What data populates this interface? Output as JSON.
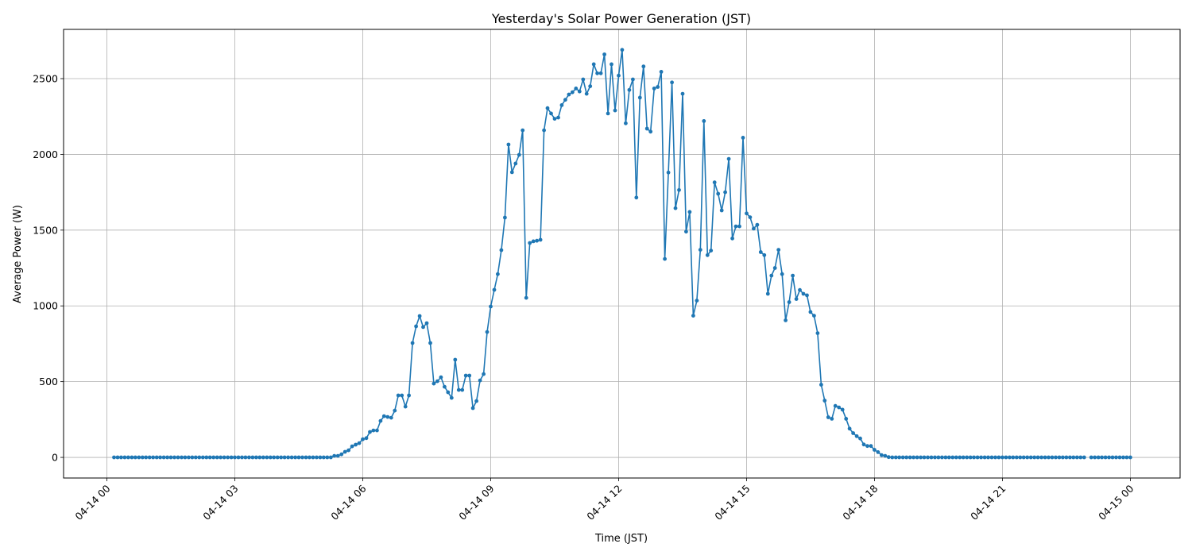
{
  "chart_data": {
    "type": "line",
    "title": "Yesterday's Solar Power Generation (JST)",
    "xlabel": "Time (JST)",
    "ylabel": "Average Power (W)",
    "xlim": [
      "04-13 22:59",
      "04-15 01:10"
    ],
    "ylim": [
      -136,
      2825
    ],
    "grid": true,
    "marker": "dot",
    "color": "#1f77b4",
    "x_ticks": [
      "04-14 00",
      "04-14 03",
      "04-14 06",
      "04-14 09",
      "04-14 12",
      "04-14 15",
      "04-14 18",
      "04-14 21",
      "04-15 00"
    ],
    "y_ticks": [
      0,
      500,
      1000,
      1500,
      2000,
      2500
    ],
    "x": [
      "04-14 00:10",
      "04-14 00:15",
      "04-14 00:20",
      "04-14 00:25",
      "04-14 00:30",
      "04-14 00:35",
      "04-14 00:40",
      "04-14 00:45",
      "04-14 00:50",
      "04-14 00:55",
      "04-14 01:00",
      "04-14 01:05",
      "04-14 01:10",
      "04-14 01:15",
      "04-14 01:20",
      "04-14 01:25",
      "04-14 01:30",
      "04-14 01:35",
      "04-14 01:40",
      "04-14 01:45",
      "04-14 01:50",
      "04-14 01:55",
      "04-14 02:00",
      "04-14 02:05",
      "04-14 02:10",
      "04-14 02:15",
      "04-14 02:20",
      "04-14 02:25",
      "04-14 02:30",
      "04-14 02:35",
      "04-14 02:40",
      "04-14 02:45",
      "04-14 02:50",
      "04-14 02:55",
      "04-14 03:00",
      "04-14 03:05",
      "04-14 03:10",
      "04-14 03:15",
      "04-14 03:20",
      "04-14 03:25",
      "04-14 03:30",
      "04-14 03:35",
      "04-14 03:40",
      "04-14 03:45",
      "04-14 03:50",
      "04-14 03:55",
      "04-14 04:00",
      "04-14 04:05",
      "04-14 04:10",
      "04-14 04:15",
      "04-14 04:20",
      "04-14 04:25",
      "04-14 04:30",
      "04-14 04:35",
      "04-14 04:40",
      "04-14 04:45",
      "04-14 04:50",
      "04-14 04:55",
      "04-14 05:00",
      "04-14 05:05",
      "04-14 05:10",
      "04-14 05:15",
      "04-14 05:20",
      "04-14 05:25",
      "04-14 05:30",
      "04-14 05:35",
      "04-14 05:40",
      "04-14 05:45",
      "04-14 05:50",
      "04-14 05:55",
      "04-14 06:00",
      "04-14 06:05",
      "04-14 06:10",
      "04-14 06:15",
      "04-14 06:20",
      "04-14 06:25",
      "04-14 06:30",
      "04-14 06:35",
      "04-14 06:40",
      "04-14 06:45",
      "04-14 06:50",
      "04-14 06:55",
      "04-14 07:00",
      "04-14 07:05",
      "04-14 07:10",
      "04-14 07:15",
      "04-14 07:20",
      "04-14 07:25",
      "04-14 07:30",
      "04-14 07:35",
      "04-14 07:40",
      "04-14 07:45",
      "04-14 07:50",
      "04-14 07:55",
      "04-14 08:00",
      "04-14 08:05",
      "04-14 08:10",
      "04-14 08:15",
      "04-14 08:20",
      "04-14 08:25",
      "04-14 08:30",
      "04-14 08:35",
      "04-14 08:40",
      "04-14 08:45",
      "04-14 08:50",
      "04-14 08:55",
      "04-14 09:00",
      "04-14 09:05",
      "04-14 09:10",
      "04-14 09:15",
      "04-14 09:20",
      "04-14 09:25",
      "04-14 09:30",
      "04-14 09:35",
      "04-14 09:40",
      "04-14 09:45",
      "04-14 09:50",
      "04-14 09:55",
      "04-14 10:00",
      "04-14 10:05",
      "04-14 10:10",
      "04-14 10:15",
      "04-14 10:20",
      "04-14 10:25",
      "04-14 10:30",
      "04-14 10:35",
      "04-14 10:40",
      "04-14 10:45",
      "04-14 10:50",
      "04-14 10:55",
      "04-14 11:00",
      "04-14 11:05",
      "04-14 11:10",
      "04-14 11:15",
      "04-14 11:20",
      "04-14 11:25",
      "04-14 11:30",
      "04-14 11:35",
      "04-14 11:40",
      "04-14 11:45",
      "04-14 11:50",
      "04-14 11:55",
      "04-14 12:00",
      "04-14 12:05",
      "04-14 12:10",
      "04-14 12:15",
      "04-14 12:20",
      "04-14 12:25",
      "04-14 12:30",
      "04-14 12:35",
      "04-14 12:40",
      "04-14 12:45",
      "04-14 12:50",
      "04-14 12:55",
      "04-14 13:00",
      "04-14 13:05",
      "04-14 13:10",
      "04-14 13:15",
      "04-14 13:20",
      "04-14 13:25",
      "04-14 13:30",
      "04-14 13:35",
      "04-14 13:40",
      "04-14 13:45",
      "04-14 13:50",
      "04-14 13:55",
      "04-14 14:00",
      "04-14 14:05",
      "04-14 14:10",
      "04-14 14:15",
      "04-14 14:20",
      "04-14 14:25",
      "04-14 14:30",
      "04-14 14:35",
      "04-14 14:40",
      "04-14 14:45",
      "04-14 14:50",
      "04-14 14:55",
      "04-14 15:00",
      "04-14 15:05",
      "04-14 15:10",
      "04-14 15:15",
      "04-14 15:20",
      "04-14 15:25",
      "04-14 15:30",
      "04-14 15:35",
      "04-14 15:40",
      "04-14 15:45",
      "04-14 15:50",
      "04-14 15:55",
      "04-14 16:00",
      "04-14 16:05",
      "04-14 16:10",
      "04-14 16:15",
      "04-14 16:20",
      "04-14 16:25",
      "04-14 16:30",
      "04-14 16:35",
      "04-14 16:40",
      "04-14 16:45",
      "04-14 16:50",
      "04-14 16:55",
      "04-14 17:00",
      "04-14 17:05",
      "04-14 17:10",
      "04-14 17:15",
      "04-14 17:20",
      "04-14 17:25",
      "04-14 17:30",
      "04-14 17:35",
      "04-14 17:40",
      "04-14 17:45",
      "04-14 17:50",
      "04-14 17:55",
      "04-14 18:00",
      "04-14 18:05",
      "04-14 18:10",
      "04-14 18:15",
      "04-14 18:20",
      "04-14 18:25",
      "04-14 18:30",
      "04-14 18:35",
      "04-14 18:40",
      "04-14 18:45",
      "04-14 18:50",
      "04-14 18:55",
      "04-14 19:00",
      "04-14 19:05",
      "04-14 19:10",
      "04-14 19:15",
      "04-14 19:20",
      "04-14 19:25",
      "04-14 19:30",
      "04-14 19:35",
      "04-14 19:40",
      "04-14 19:45",
      "04-14 19:50",
      "04-14 19:55",
      "04-14 20:00",
      "04-14 20:05",
      "04-14 20:10",
      "04-14 20:15",
      "04-14 20:20",
      "04-14 20:25",
      "04-14 20:30",
      "04-14 20:35",
      "04-14 20:40",
      "04-14 20:45",
      "04-14 20:50",
      "04-14 20:55",
      "04-14 21:00",
      "04-14 21:05",
      "04-14 21:10",
      "04-14 21:15",
      "04-14 21:20",
      "04-14 21:25",
      "04-14 21:30",
      "04-14 21:35",
      "04-14 21:40",
      "04-14 21:45",
      "04-14 21:50",
      "04-14 21:55",
      "04-14 22:00",
      "04-14 22:05",
      "04-14 22:10",
      "04-14 22:15",
      "04-14 22:20",
      "04-14 22:25",
      "04-14 22:30",
      "04-14 22:35",
      "04-14 22:40",
      "04-14 22:45",
      "04-14 22:50",
      "04-14 22:55",
      "04-14 23:00",
      "04-14 23:05",
      "04-14 23:10",
      "04-14 23:15",
      "04-14 23:20",
      "04-14 23:25",
      "04-14 23:30",
      "04-14 23:35",
      "04-14 23:40",
      "04-14 23:45",
      "04-14 23:50",
      "04-14 23:55",
      "04-15 00:00"
    ],
    "values": [
      0,
      0,
      0,
      0,
      0,
      0,
      0,
      0,
      0,
      0,
      0,
      0,
      0,
      0,
      0,
      0,
      0,
      0,
      0,
      0,
      0,
      0,
      0,
      0,
      0,
      0,
      0,
      0,
      0,
      0,
      0,
      0,
      0,
      0,
      0,
      0,
      0,
      0,
      0,
      0,
      0,
      0,
      0,
      0,
      0,
      0,
      0,
      0,
      0,
      0,
      0,
      0,
      0,
      0,
      0,
      0,
      0,
      0,
      0,
      0,
      0,
      0,
      10,
      10,
      20,
      37,
      47,
      73,
      84,
      94,
      120,
      127,
      168,
      178,
      178,
      241,
      272,
      267,
      262,
      309,
      409,
      409,
      335,
      409,
      755,
      865,
      933,
      860,
      886,
      755,
      487,
      503,
      529,
      466,
      430,
      393,
      645,
      445,
      445,
      540,
      540,
      325,
      372,
      508,
      550,
      828,
      996,
      1106,
      1210,
      1368,
      1583,
      2065,
      1882,
      1940,
      1997,
      2159,
      1053,
      1415,
      1426,
      1430,
      1436,
      2159,
      2305,
      2270,
      2235,
      2243,
      2325,
      2360,
      2395,
      2410,
      2435,
      2415,
      2495,
      2400,
      2450,
      2595,
      2535,
      2535,
      2660,
      2270,
      2595,
      2290,
      2520,
      2690,
      2205,
      2425,
      2495,
      1715,
      2375,
      2580,
      2170,
      2150,
      2435,
      2445,
      2545,
      1310,
      1880,
      2475,
      1645,
      1765,
      2400,
      1490,
      1620,
      935,
      1035,
      1370,
      2220,
      1335,
      1365,
      1815,
      1740,
      1630,
      1750,
      1970,
      1445,
      1525,
      1525,
      2110,
      1610,
      1585,
      1510,
      1535,
      1355,
      1335,
      1080,
      1200,
      1250,
      1370,
      1210,
      905,
      1025,
      1200,
      1045,
      1105,
      1080,
      1070,
      960,
      935,
      820,
      480,
      375,
      265,
      255,
      340,
      330,
      315,
      255,
      190,
      160,
      140,
      125,
      85,
      75,
      75,
      50,
      35,
      15,
      10,
      2,
      0,
      0,
      0,
      0,
      0,
      0,
      0,
      0,
      0,
      0,
      0,
      0,
      0,
      0,
      0,
      0,
      0,
      0,
      0,
      0,
      0,
      0,
      0,
      0,
      0,
      0,
      0,
      0,
      0,
      0,
      0,
      0,
      0,
      0,
      0,
      0,
      0,
      0,
      0,
      0,
      0,
      0,
      0,
      0,
      0,
      0,
      0,
      0,
      0,
      0,
      0,
      0,
      0,
      0,
      0,
      null,
      0,
      0,
      0,
      0,
      0,
      0,
      0,
      0,
      0,
      0,
      0,
      0
    ]
  }
}
